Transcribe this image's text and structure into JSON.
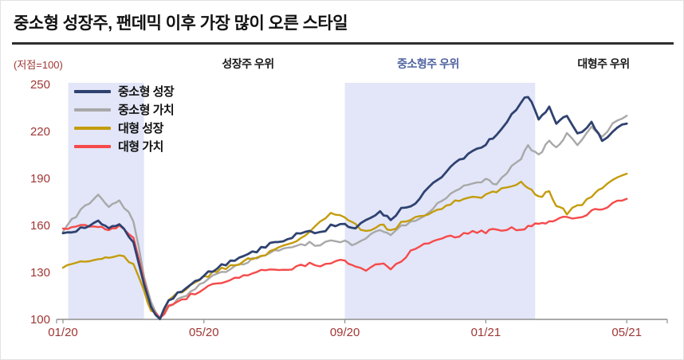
{
  "title": "중소형 성장주, 팬데믹 이후 가장 많이 오른 스타일",
  "axis_note": "(저점=100)",
  "annotations": [
    {
      "label": "성장주 우위",
      "color": "#1a1a1a"
    },
    {
      "label": "중소형주 우위",
      "color": "#4f63a0"
    },
    {
      "label": "대형주 우위",
      "color": "#1a1a1a"
    }
  ],
  "legend": [
    {
      "label": "중소형 성장",
      "color": "#2f4270"
    },
    {
      "label": "중소형 가치",
      "color": "#a8a8a8"
    },
    {
      "label": "대형 성장",
      "color": "#c49c0c"
    },
    {
      "label": "대형 가치",
      "color": "#f64a4a"
    }
  ],
  "colors": {
    "axis": "#8f8f8f",
    "tick_label": "#9e3634",
    "band": "#e2e6f8",
    "title_rule": "#2f2f2f"
  },
  "chart_data": {
    "type": "line",
    "title": "중소형 성장주, 팬데믹 이후 가장 많이 오른 스타일",
    "ylabel": "(저점=100)",
    "x_unit": "months since 2020-01",
    "xlim": [
      0,
      17.1
    ],
    "ylim": [
      100,
      250
    ],
    "y_ticks": [
      100,
      130,
      160,
      190,
      220,
      250
    ],
    "x_ticks": [
      {
        "x": 0,
        "label": "01/20"
      },
      {
        "x": 4,
        "label": "05/20"
      },
      {
        "x": 8,
        "label": "09/20"
      },
      {
        "x": 12,
        "label": "01/21"
      },
      {
        "x": 16,
        "label": "05/21"
      }
    ],
    "highlight_bands": [
      {
        "from": 0.15,
        "to": 2.3
      },
      {
        "from": 8.0,
        "to": 13.4
      }
    ],
    "x": [
      0,
      0.5,
      1,
      1.3,
      1.6,
      2,
      2.3,
      2.5,
      2.75,
      3,
      3.5,
      4,
      4.5,
      5,
      5.5,
      6,
      6.5,
      7,
      7.3,
      7.6,
      8,
      8.3,
      8.6,
      9,
      9.3,
      9.6,
      10,
      10.5,
      11,
      11.5,
      12,
      12.3,
      12.6,
      13,
      13.2,
      13.5,
      13.8,
      14,
      14.3,
      14.6,
      15,
      15.3,
      15.6,
      16
    ],
    "series": [
      {
        "name": "중소형 성장",
        "color": "#2f4270",
        "values": [
          155,
          158,
          162,
          158,
          160,
          150,
          122,
          108,
          100,
          112,
          121,
          128,
          134,
          139,
          144,
          149,
          153,
          157,
          155,
          160,
          161,
          158,
          163,
          168,
          164,
          170,
          175,
          186,
          197,
          205,
          212,
          218,
          226,
          238,
          243,
          228,
          235,
          225,
          231,
          218,
          226,
          214,
          220,
          225
        ]
      },
      {
        "name": "중소형 가치",
        "color": "#a8a8a8",
        "values": [
          156,
          170,
          179,
          172,
          176,
          163,
          128,
          110,
          101,
          108,
          116,
          124,
          130,
          135,
          139,
          143,
          146,
          149,
          147,
          151,
          150,
          147,
          152,
          158,
          154,
          160,
          163,
          171,
          180,
          186,
          189,
          186,
          194,
          203,
          210,
          205,
          214,
          210,
          218,
          212,
          222,
          217,
          224,
          230
        ]
      },
      {
        "name": "대형 성장",
        "color": "#c49c0c",
        "values": [
          133,
          136,
          139,
          140,
          141,
          136,
          118,
          106,
          100,
          113,
          120,
          127,
          132,
          136,
          140,
          144,
          149,
          155,
          162,
          168,
          166,
          160,
          156,
          161,
          156,
          162,
          165,
          169,
          174,
          177,
          179,
          182,
          185,
          187,
          184,
          178,
          182,
          173,
          168,
          172,
          178,
          184,
          189,
          193
        ]
      },
      {
        "name": "대형 가치",
        "color": "#f64a4a",
        "values": [
          158,
          160,
          159,
          157,
          159,
          152,
          124,
          108,
          100,
          108,
          114,
          120,
          124,
          127,
          130,
          132,
          133,
          135,
          134,
          136,
          138,
          134,
          132,
          136,
          133,
          138,
          146,
          150,
          153,
          155,
          156,
          157,
          158,
          157,
          159,
          161,
          163,
          164,
          166,
          165,
          169,
          171,
          174,
          177
        ]
      }
    ]
  }
}
